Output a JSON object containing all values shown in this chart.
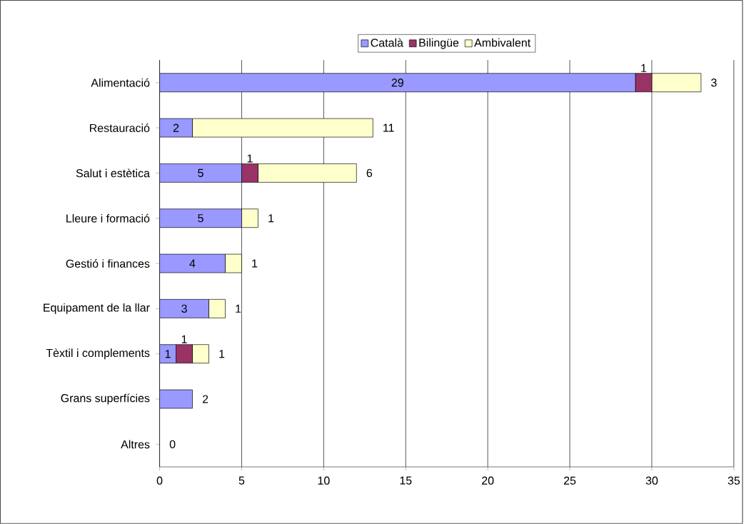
{
  "chart_data": {
    "type": "bar",
    "orientation": "horizontal",
    "stacked": true,
    "categories": [
      "Alimentació",
      "Restauració",
      "Salut i estètica",
      "Lleure i formació",
      "Gestió i finances",
      "Equipament de la llar",
      "Tèxtil i complements",
      "Grans superfícies",
      "Altres"
    ],
    "series": [
      {
        "name": "Català",
        "color": "#9999ff",
        "values": [
          29,
          2,
          5,
          5,
          4,
          3,
          1,
          2,
          0
        ],
        "value_labels": [
          "29",
          "2",
          "5",
          "5",
          "4",
          "3",
          "1",
          "2",
          "0"
        ]
      },
      {
        "name": "Bilingüe",
        "color": "#993366",
        "values": [
          1,
          0,
          1,
          0,
          0,
          0,
          1,
          0,
          0
        ],
        "value_labels": [
          "1",
          null,
          "1",
          null,
          null,
          null,
          "1",
          null,
          null
        ]
      },
      {
        "name": "Ambivalent",
        "color": "#ffffcc",
        "values": [
          3,
          11,
          6,
          1,
          1,
          1,
          1,
          0,
          0
        ],
        "value_labels": [
          "3",
          "11",
          "6",
          "1",
          "1",
          "1",
          "1",
          null,
          null
        ]
      }
    ],
    "xlim": [
      0,
      35
    ],
    "xticks": [
      0,
      5,
      10,
      15,
      20,
      25,
      30,
      35
    ],
    "grid": "x",
    "legend": "top"
  }
}
